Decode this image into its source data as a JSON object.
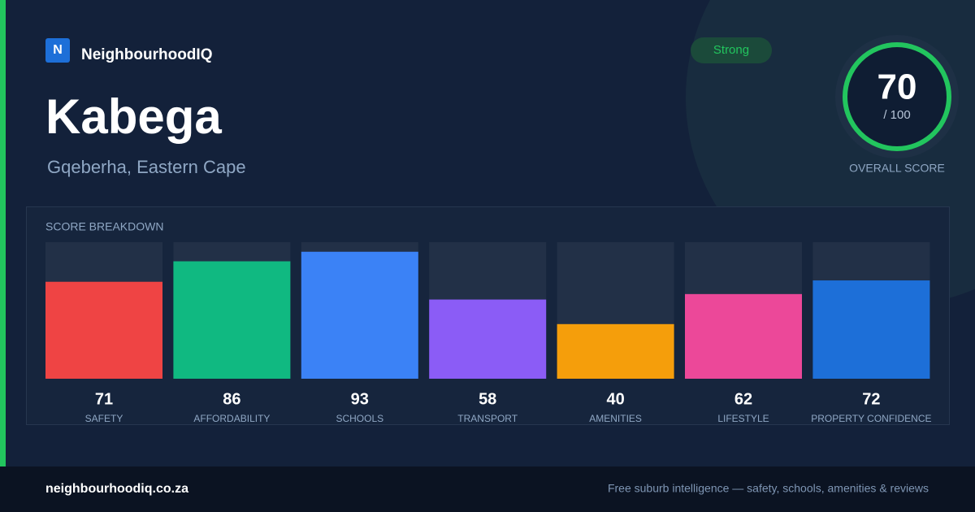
{
  "brand": {
    "logo_letter": "N",
    "name": "NeighbourhoodIQ"
  },
  "suburb": "Kabega",
  "location": "Gqeberha, Eastern Cape",
  "badge": "Strong",
  "score": {
    "value": 70,
    "max_label": "/ 100",
    "caption": "OVERALL SCORE"
  },
  "chart_data": {
    "type": "bar",
    "title": "SCORE BREAKDOWN",
    "categories": [
      "SAFETY",
      "AFFORDABILITY",
      "SCHOOLS",
      "TRANSPORT",
      "AMENITIES",
      "LIFESTYLE",
      "PROPERTY CONFIDENCE"
    ],
    "values": [
      71,
      86,
      93,
      58,
      40,
      62,
      72
    ],
    "colors": [
      "#ef4444",
      "#10b981",
      "#3b82f6",
      "#8b5cf6",
      "#f59e0b",
      "#ec4899",
      "#1d6fd8"
    ],
    "ylim": [
      0,
      100
    ]
  },
  "footer": {
    "site": "neighbourhoodiq.co.za",
    "tagline": "Free suburb intelligence — safety, schools, amenities & reviews"
  }
}
